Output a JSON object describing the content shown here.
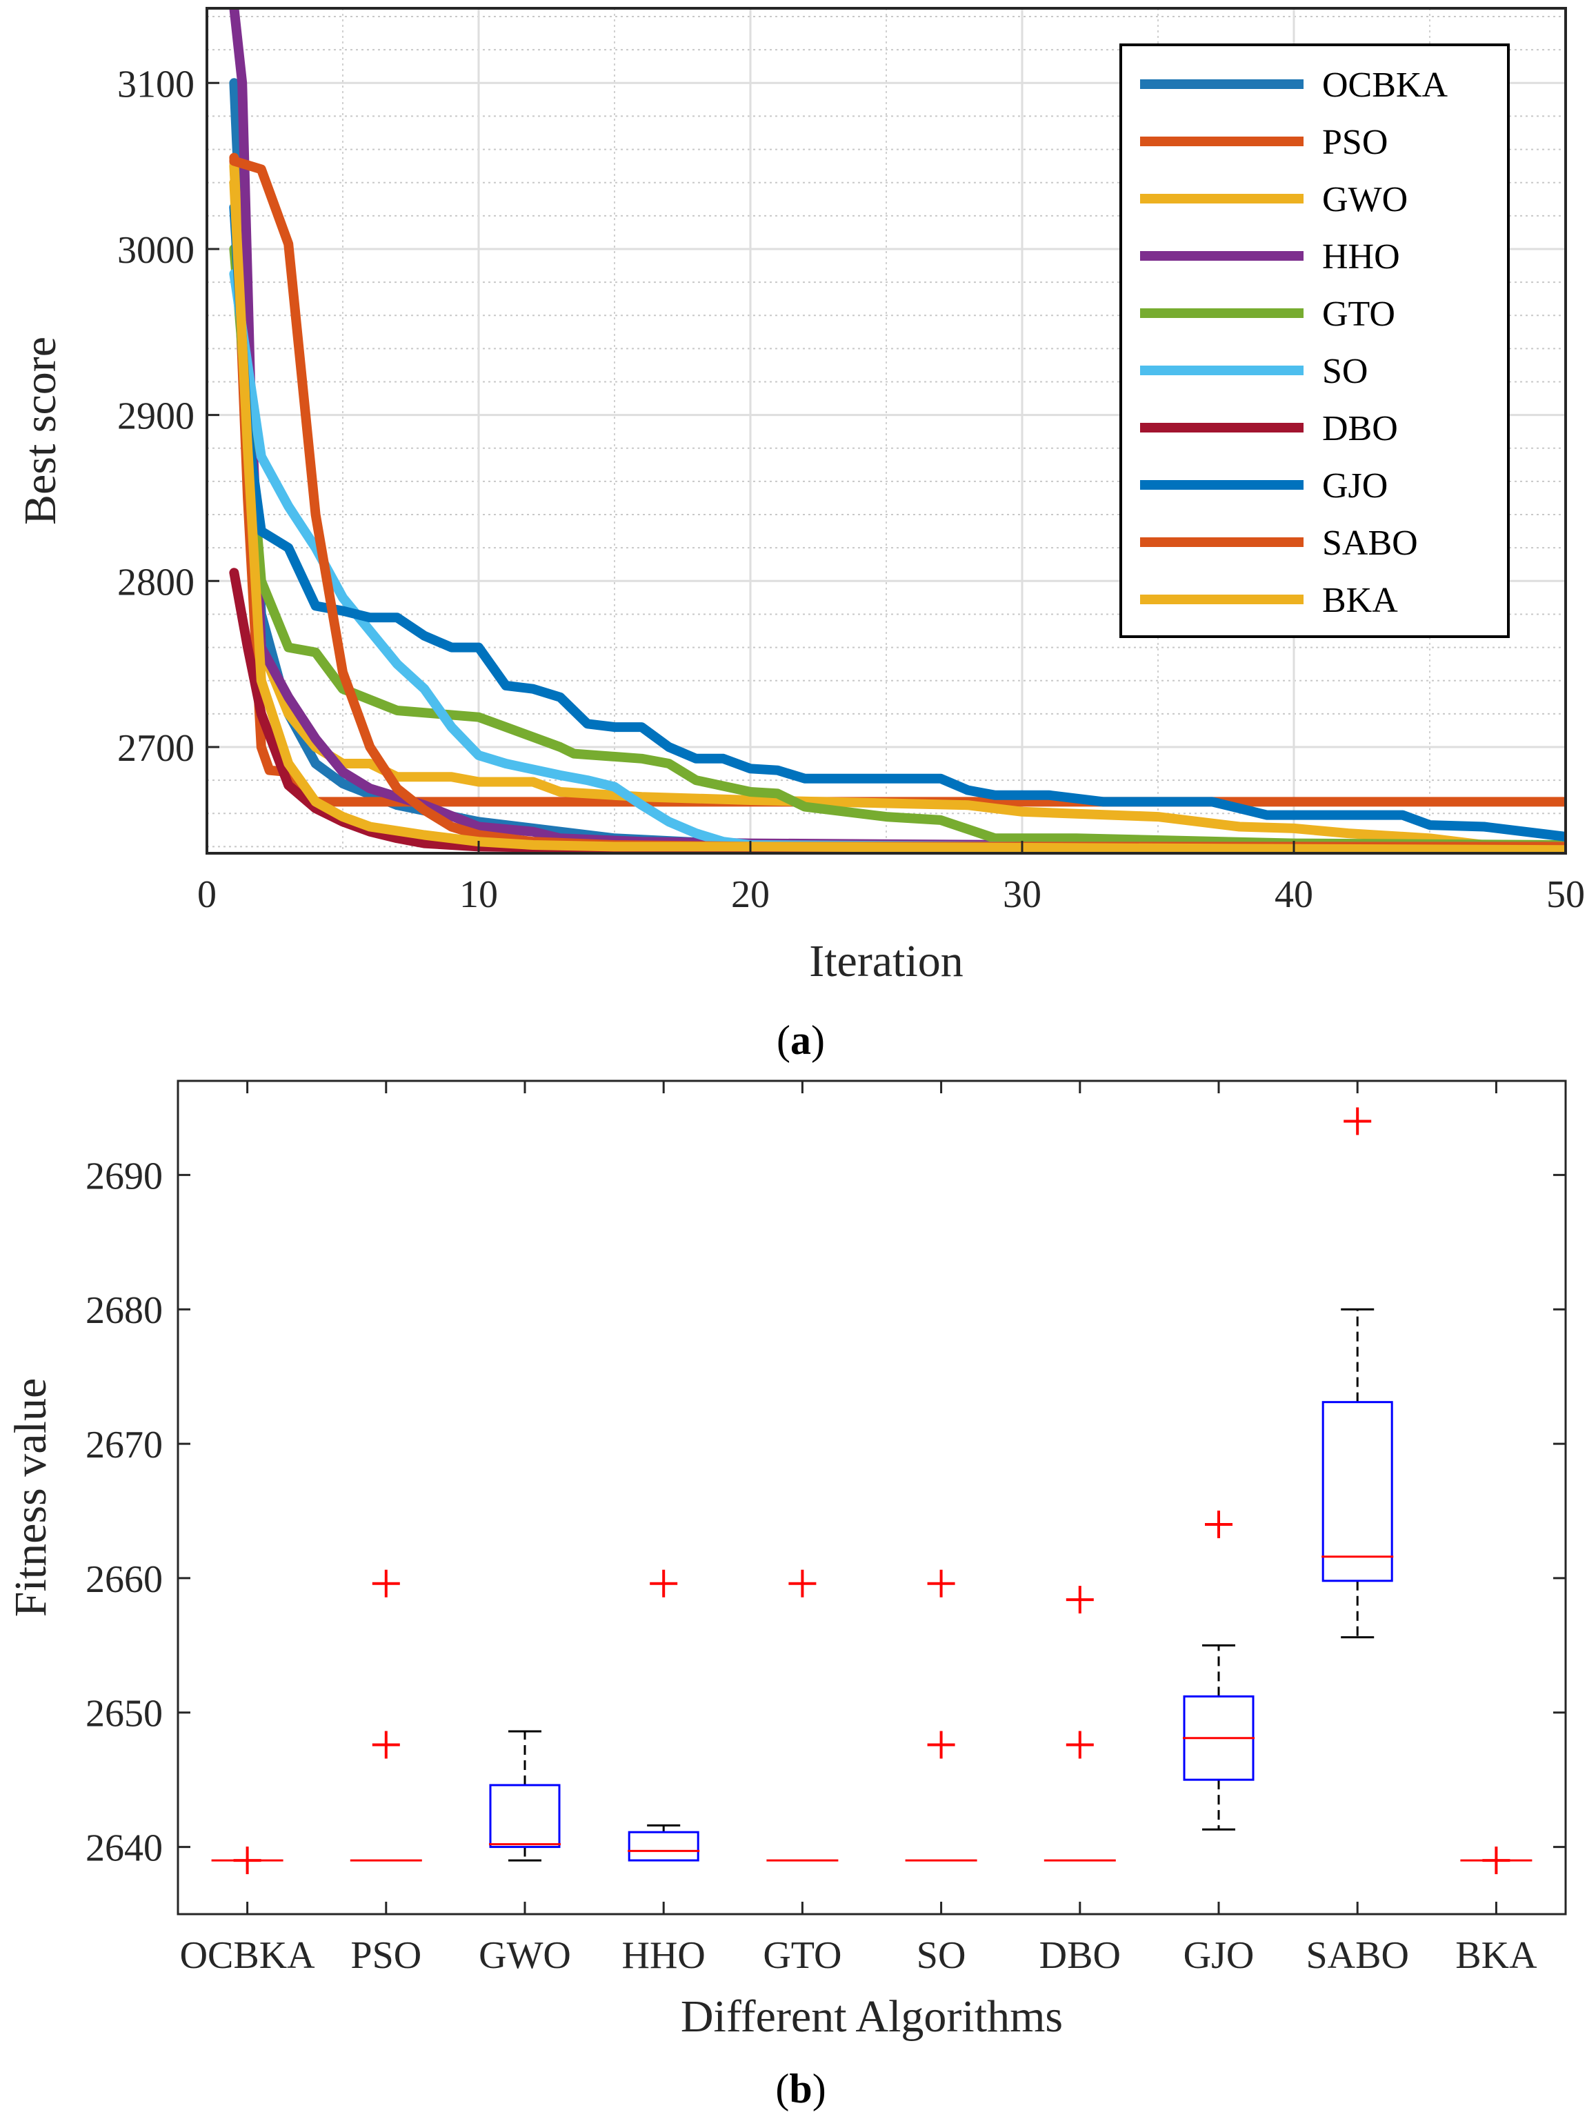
{
  "chart_data": [
    {
      "type": "line",
      "title": "",
      "xlabel": "Iteration",
      "ylabel": "Best score",
      "xlim": [
        0,
        50
      ],
      "ylim": [
        2636,
        3145
      ],
      "xticks": [
        0,
        10,
        20,
        30,
        40,
        50
      ],
      "yticks": [
        2700,
        2800,
        2900,
        3000,
        3100
      ],
      "grid": true,
      "legend_position": "top-right",
      "caption_letter": "a",
      "series": [
        {
          "name": "OCBKA",
          "color": "#1f77b4",
          "points": [
            [
              1,
              3100
            ],
            [
              1.3,
              2990
            ],
            [
              1.6,
              2900
            ],
            [
              2,
              2780
            ],
            [
              3,
              2720
            ],
            [
              4,
              2690
            ],
            [
              5,
              2678
            ],
            [
              7,
              2665
            ],
            [
              10,
              2655
            ],
            [
              15,
              2645
            ],
            [
              20,
              2641
            ],
            [
              30,
              2639
            ],
            [
              50,
              2639
            ]
          ]
        },
        {
          "name": "PSO",
          "color": "#d95319",
          "points": [
            [
              1,
              3055
            ],
            [
              1.5,
              2850
            ],
            [
              2,
              2700
            ],
            [
              2.3,
              2686
            ],
            [
              3,
              2685
            ],
            [
              4,
              2667
            ],
            [
              6,
              2667
            ],
            [
              10,
              2667
            ],
            [
              20,
              2667
            ],
            [
              30,
              2667
            ],
            [
              40,
              2667
            ],
            [
              50,
              2667
            ]
          ]
        },
        {
          "name": "GWO",
          "color": "#edb120",
          "points": [
            [
              1,
              3050
            ],
            [
              1.5,
              2900
            ],
            [
              2,
              2760
            ],
            [
              3,
              2720
            ],
            [
              4,
              2700
            ],
            [
              5,
              2690
            ],
            [
              6,
              2690
            ],
            [
              7,
              2682
            ],
            [
              9,
              2682
            ],
            [
              10,
              2679
            ],
            [
              12,
              2679
            ],
            [
              13,
              2673
            ],
            [
              16,
              2670
            ],
            [
              20,
              2668
            ],
            [
              28,
              2665
            ],
            [
              30,
              2661
            ],
            [
              35,
              2658
            ],
            [
              38,
              2652
            ],
            [
              40,
              2651
            ],
            [
              42,
              2648
            ],
            [
              45,
              2645
            ],
            [
              47,
              2641
            ],
            [
              50,
              2640
            ]
          ]
        },
        {
          "name": "HHO",
          "color": "#7e2f8e",
          "points": [
            [
              1,
              3145
            ],
            [
              1.3,
              3100
            ],
            [
              1.6,
              2920
            ],
            [
              2,
              2760
            ],
            [
              3,
              2730
            ],
            [
              4,
              2705
            ],
            [
              5,
              2685
            ],
            [
              6,
              2675
            ],
            [
              8,
              2665
            ],
            [
              10,
              2652
            ],
            [
              12,
              2649
            ],
            [
              13,
              2645
            ],
            [
              16,
              2643
            ],
            [
              20,
              2642
            ],
            [
              30,
              2641
            ],
            [
              50,
              2641
            ]
          ]
        },
        {
          "name": "GTO",
          "color": "#77ac30",
          "points": [
            [
              1,
              3000
            ],
            [
              1.5,
              2900
            ],
            [
              2,
              2800
            ],
            [
              3,
              2760
            ],
            [
              4,
              2757
            ],
            [
              5,
              2735
            ],
            [
              7,
              2722
            ],
            [
              10,
              2718
            ],
            [
              11,
              2712
            ],
            [
              13,
              2700
            ],
            [
              13.5,
              2696
            ],
            [
              16,
              2693
            ],
            [
              17,
              2690
            ],
            [
              18,
              2680
            ],
            [
              20,
              2673
            ],
            [
              21,
              2672
            ],
            [
              22,
              2664
            ],
            [
              25,
              2658
            ],
            [
              27,
              2656
            ],
            [
              29,
              2645
            ],
            [
              32,
              2645
            ],
            [
              40,
              2642
            ],
            [
              50,
              2641
            ]
          ]
        },
        {
          "name": "SO",
          "color": "#4dbeee",
          "points": [
            [
              1,
              2985
            ],
            [
              1.5,
              2930
            ],
            [
              2,
              2875
            ],
            [
              3,
              2845
            ],
            [
              4,
              2820
            ],
            [
              5,
              2790
            ],
            [
              6,
              2770
            ],
            [
              7,
              2750
            ],
            [
              8,
              2735
            ],
            [
              9,
              2712
            ],
            [
              10,
              2695
            ],
            [
              11,
              2690
            ],
            [
              13,
              2683
            ],
            [
              14,
              2680
            ],
            [
              15,
              2676
            ],
            [
              16,
              2665
            ],
            [
              17,
              2655
            ],
            [
              18,
              2648
            ],
            [
              19,
              2643
            ],
            [
              20,
              2641
            ],
            [
              30,
              2640
            ],
            [
              50,
              2640
            ]
          ]
        },
        {
          "name": "DBO",
          "color": "#a2142f",
          "points": [
            [
              1,
              2805
            ],
            [
              1.5,
              2760
            ],
            [
              2,
              2720
            ],
            [
              3,
              2677
            ],
            [
              4,
              2663
            ],
            [
              5,
              2655
            ],
            [
              6,
              2649
            ],
            [
              7,
              2645
            ],
            [
              8,
              2642
            ],
            [
              10,
              2640
            ],
            [
              15,
              2639
            ],
            [
              50,
              2639
            ]
          ]
        },
        {
          "name": "GJO",
          "color": "#0072bd",
          "points": [
            [
              1,
              3025
            ],
            [
              1.5,
              2890
            ],
            [
              2,
              2830
            ],
            [
              3,
              2820
            ],
            [
              4,
              2785
            ],
            [
              5,
              2782
            ],
            [
              6,
              2778
            ],
            [
              7,
              2778
            ],
            [
              8,
              2767
            ],
            [
              9,
              2760
            ],
            [
              10,
              2760
            ],
            [
              11,
              2737
            ],
            [
              12,
              2735
            ],
            [
              13,
              2730
            ],
            [
              14,
              2714
            ],
            [
              15,
              2712
            ],
            [
              16,
              2712
            ],
            [
              17,
              2700
            ],
            [
              18,
              2693
            ],
            [
              19,
              2693
            ],
            [
              20,
              2687
            ],
            [
              21,
              2686
            ],
            [
              22,
              2681
            ],
            [
              27,
              2681
            ],
            [
              28,
              2674
            ],
            [
              29,
              2671
            ],
            [
              31,
              2671
            ],
            [
              33,
              2667
            ],
            [
              37,
              2667
            ],
            [
              39,
              2659
            ],
            [
              44,
              2659
            ],
            [
              45,
              2653
            ],
            [
              47,
              2652
            ],
            [
              50,
              2646
            ]
          ]
        },
        {
          "name": "SABO",
          "color": "#d95319",
          "points": [
            [
              1,
              3053
            ],
            [
              2,
              3048
            ],
            [
              3,
              3003
            ],
            [
              4,
              2840
            ],
            [
              5,
              2745
            ],
            [
              6,
              2700
            ],
            [
              7,
              2675
            ],
            [
              8,
              2662
            ],
            [
              9,
              2652
            ],
            [
              10,
              2647
            ],
            [
              12,
              2643
            ],
            [
              15,
              2641
            ],
            [
              20,
              2640
            ],
            [
              50,
              2640
            ]
          ]
        },
        {
          "name": "BKA",
          "color": "#edb120",
          "points": [
            [
              1,
              3040
            ],
            [
              1.5,
              2880
            ],
            [
              2,
              2740
            ],
            [
              3,
              2690
            ],
            [
              4,
              2667
            ],
            [
              5,
              2658
            ],
            [
              6,
              2652
            ],
            [
              8,
              2647
            ],
            [
              10,
              2643
            ],
            [
              12,
              2641
            ],
            [
              15,
              2640
            ],
            [
              20,
              2640
            ],
            [
              50,
              2638
            ]
          ]
        }
      ]
    },
    {
      "type": "box",
      "title": "",
      "xlabel": "Different Algorithms",
      "ylabel": "Fitness value",
      "ylim": [
        2635,
        2697
      ],
      "yticks": [
        2640,
        2650,
        2660,
        2670,
        2680,
        2690
      ],
      "grid": false,
      "caption_letter": "b",
      "categories": [
        "OCBKA",
        "PSO",
        "GWO",
        "HHO",
        "GTO",
        "SO",
        "DBO",
        "GJO",
        "SABO",
        "BKA"
      ],
      "boxes": [
        {
          "name": "OCBKA",
          "q1": 2639,
          "median": 2639,
          "q3": 2639,
          "whisker_low": 2639,
          "whisker_high": 2639,
          "outliers": [
            2639
          ]
        },
        {
          "name": "PSO",
          "q1": 2639,
          "median": 2639,
          "q3": 2639,
          "whisker_low": 2639,
          "whisker_high": 2639,
          "outliers": [
            2647.6,
            2659.6
          ]
        },
        {
          "name": "GWO",
          "q1": 2640,
          "median": 2640.2,
          "q3": 2644.6,
          "whisker_low": 2639,
          "whisker_high": 2648.6,
          "outliers": []
        },
        {
          "name": "HHO",
          "q1": 2639,
          "median": 2639.7,
          "q3": 2641.1,
          "whisker_low": 2639,
          "whisker_high": 2641.6,
          "outliers": [
            2659.6
          ]
        },
        {
          "name": "GTO",
          "q1": 2639,
          "median": 2639,
          "q3": 2639,
          "whisker_low": 2639,
          "whisker_high": 2639,
          "outliers": [
            2659.6
          ]
        },
        {
          "name": "SO",
          "q1": 2639,
          "median": 2639,
          "q3": 2639,
          "whisker_low": 2639,
          "whisker_high": 2639,
          "outliers": [
            2647.6,
            2659.6
          ]
        },
        {
          "name": "DBO",
          "q1": 2639,
          "median": 2639,
          "q3": 2639,
          "whisker_low": 2639,
          "whisker_high": 2639,
          "outliers": [
            2647.6,
            2658.4
          ]
        },
        {
          "name": "GJO",
          "q1": 2645,
          "median": 2648.1,
          "q3": 2651.2,
          "whisker_low": 2641.3,
          "whisker_high": 2655,
          "outliers": [
            2664
          ]
        },
        {
          "name": "SABO",
          "q1": 2659.8,
          "median": 2661.6,
          "q3": 2673.1,
          "whisker_low": 2655.6,
          "whisker_high": 2680,
          "outliers": [
            2694
          ]
        },
        {
          "name": "BKA",
          "q1": 2639,
          "median": 2639,
          "q3": 2639,
          "whisker_low": 2639,
          "whisker_high": 2639,
          "outliers": [
            2639
          ]
        }
      ]
    }
  ]
}
